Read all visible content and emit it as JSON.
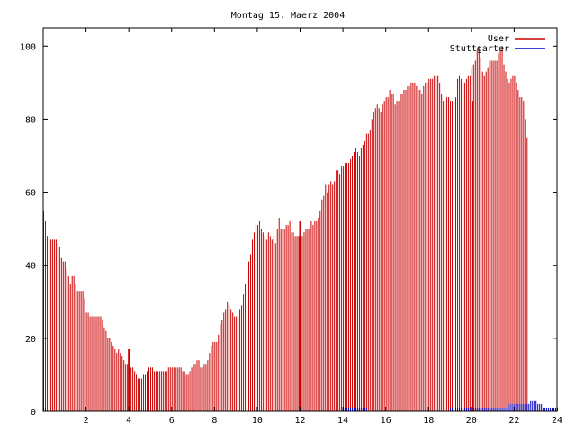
{
  "chart_data": {
    "type": "bar",
    "title": "Montag 15. Maerz 2004",
    "xlabel": "",
    "ylabel": "",
    "xlim": [
      0,
      24
    ],
    "ylim": [
      0,
      105
    ],
    "xticks": [
      2,
      4,
      6,
      8,
      10,
      12,
      14,
      16,
      18,
      20,
      22,
      24
    ],
    "yticks": [
      0,
      20,
      40,
      60,
      80,
      100
    ],
    "legend_position": "top-right",
    "bar_spacing_hours": 0.0833333,
    "series": [
      {
        "name": "User",
        "color": "#cc0000",
        "values": [
          55,
          52,
          48,
          47,
          47,
          47,
          47,
          47,
          46,
          45,
          42,
          41,
          41,
          39,
          37,
          35,
          37,
          37,
          35,
          33,
          33,
          33,
          33,
          31,
          27,
          27,
          26,
          26,
          26,
          26,
          26,
          26,
          26,
          25,
          23,
          22,
          20,
          20,
          19,
          18,
          17,
          16,
          17,
          16,
          15,
          14,
          13,
          13,
          12,
          12,
          12,
          11,
          10,
          9,
          9,
          9,
          10,
          10,
          11,
          12,
          12,
          12,
          11,
          11,
          11,
          11,
          11,
          11,
          11,
          11,
          12,
          12,
          12,
          12,
          12,
          12,
          12,
          12,
          11,
          11,
          10,
          10,
          11,
          12,
          13,
          13,
          14,
          14,
          12,
          12,
          13,
          13,
          14,
          16,
          18,
          19,
          19,
          19,
          21,
          24,
          25,
          27,
          28,
          30,
          29,
          28,
          27,
          26,
          26,
          26,
          28,
          29,
          32,
          35,
          38,
          41,
          43,
          47,
          49,
          51,
          51,
          52,
          50,
          49,
          48,
          47,
          49,
          48,
          47,
          48,
          46,
          50,
          53,
          50,
          50,
          50,
          51,
          51,
          52,
          49,
          49,
          48,
          48,
          48,
          48,
          48,
          49,
          50,
          50,
          50,
          52,
          51,
          52,
          52,
          53,
          55,
          58,
          59,
          62,
          60,
          62,
          63,
          62,
          63,
          66,
          66,
          65,
          67,
          67,
          68,
          68,
          68,
          69,
          70,
          71,
          72,
          71,
          70,
          72,
          73,
          74,
          76,
          76,
          77,
          80,
          82,
          83,
          84,
          83,
          82,
          84,
          85,
          86,
          86,
          88,
          87,
          87,
          84,
          85,
          85,
          87,
          87,
          88,
          88,
          89,
          89,
          90,
          90,
          90,
          89,
          88,
          88,
          87,
          89,
          90,
          90,
          91,
          91,
          91,
          92,
          92,
          92,
          90,
          87,
          85,
          85,
          86,
          86,
          85,
          85,
          86,
          86,
          91,
          92,
          91,
          90,
          90,
          91,
          92,
          92,
          94,
          95,
          96,
          99,
          100,
          97,
          93,
          92,
          93,
          94,
          96,
          96,
          96,
          96,
          96,
          98,
          99,
          100,
          95,
          93,
          91,
          90,
          91,
          92,
          92,
          90,
          88,
          86,
          86,
          85,
          80,
          75
        ]
      },
      {
        "name": "Stuttgarter",
        "color": "#0000cc",
        "values": [
          1,
          1,
          0,
          0,
          0,
          0,
          0,
          0,
          0,
          0,
          0,
          0,
          0,
          0,
          0,
          0,
          0,
          0,
          0,
          0,
          0,
          0,
          0,
          0,
          0,
          0,
          0,
          0,
          0,
          0,
          0,
          0,
          0,
          0,
          0,
          0,
          0,
          0,
          0,
          0,
          0,
          0,
          0,
          0,
          0,
          0,
          0,
          0,
          0,
          0,
          0,
          0,
          0,
          0,
          0,
          0,
          0,
          0,
          0,
          0,
          0,
          0,
          0,
          0,
          0,
          0,
          0,
          0,
          0,
          0,
          0,
          0,
          0,
          0,
          0,
          0,
          0,
          0,
          0,
          0,
          0,
          0,
          0,
          0,
          0,
          0,
          0,
          0,
          0,
          0,
          0,
          0,
          0,
          0,
          0,
          0,
          0,
          0,
          0,
          0,
          0,
          0,
          0,
          0,
          0,
          0,
          0,
          0,
          0,
          0,
          0,
          0,
          0,
          0,
          0,
          0,
          0,
          0,
          0,
          0,
          0,
          0,
          0,
          0,
          0,
          0,
          0,
          0,
          0,
          0,
          0,
          0,
          0,
          0,
          0,
          0,
          0,
          0,
          0,
          0,
          0,
          0,
          0,
          0,
          0,
          0,
          0,
          0,
          0,
          0,
          0,
          0,
          0,
          0,
          0,
          0,
          0,
          0,
          0,
          0,
          0,
          0,
          0,
          0,
          0,
          0,
          0,
          0,
          1,
          1,
          1,
          1,
          1,
          1,
          1,
          1,
          1,
          1,
          1,
          1,
          1,
          1,
          0,
          0,
          0,
          0,
          0,
          0,
          0,
          0,
          0,
          0,
          0,
          0,
          0,
          0,
          0,
          0,
          0,
          0,
          0,
          0,
          0,
          0,
          0,
          0,
          0,
          0,
          0,
          0,
          0,
          0,
          0,
          0,
          0,
          0,
          0,
          0,
          0,
          0,
          0,
          0,
          0,
          0,
          0,
          0,
          0,
          0,
          1,
          1,
          1,
          1,
          1,
          1,
          1,
          1,
          1,
          1,
          1,
          1,
          1,
          1,
          1,
          1,
          1,
          1,
          1,
          1,
          1,
          1,
          1,
          1,
          1,
          1,
          1,
          1,
          1,
          1,
          1,
          1,
          1,
          2,
          2,
          2,
          2,
          2,
          2,
          2,
          2,
          2,
          2,
          2,
          2,
          3,
          3,
          3,
          3,
          2,
          2,
          2,
          1,
          1,
          1,
          1,
          1,
          1,
          1,
          1,
          1
        ]
      }
    ],
    "highlight_markers": [
      {
        "x": 4.0,
        "color": "#cc0000",
        "value": 17
      },
      {
        "x": 12.0,
        "color": "#cc0000",
        "value": 52
      },
      {
        "x": 20.05,
        "color": "#cc0000",
        "value": 85
      }
    ]
  }
}
